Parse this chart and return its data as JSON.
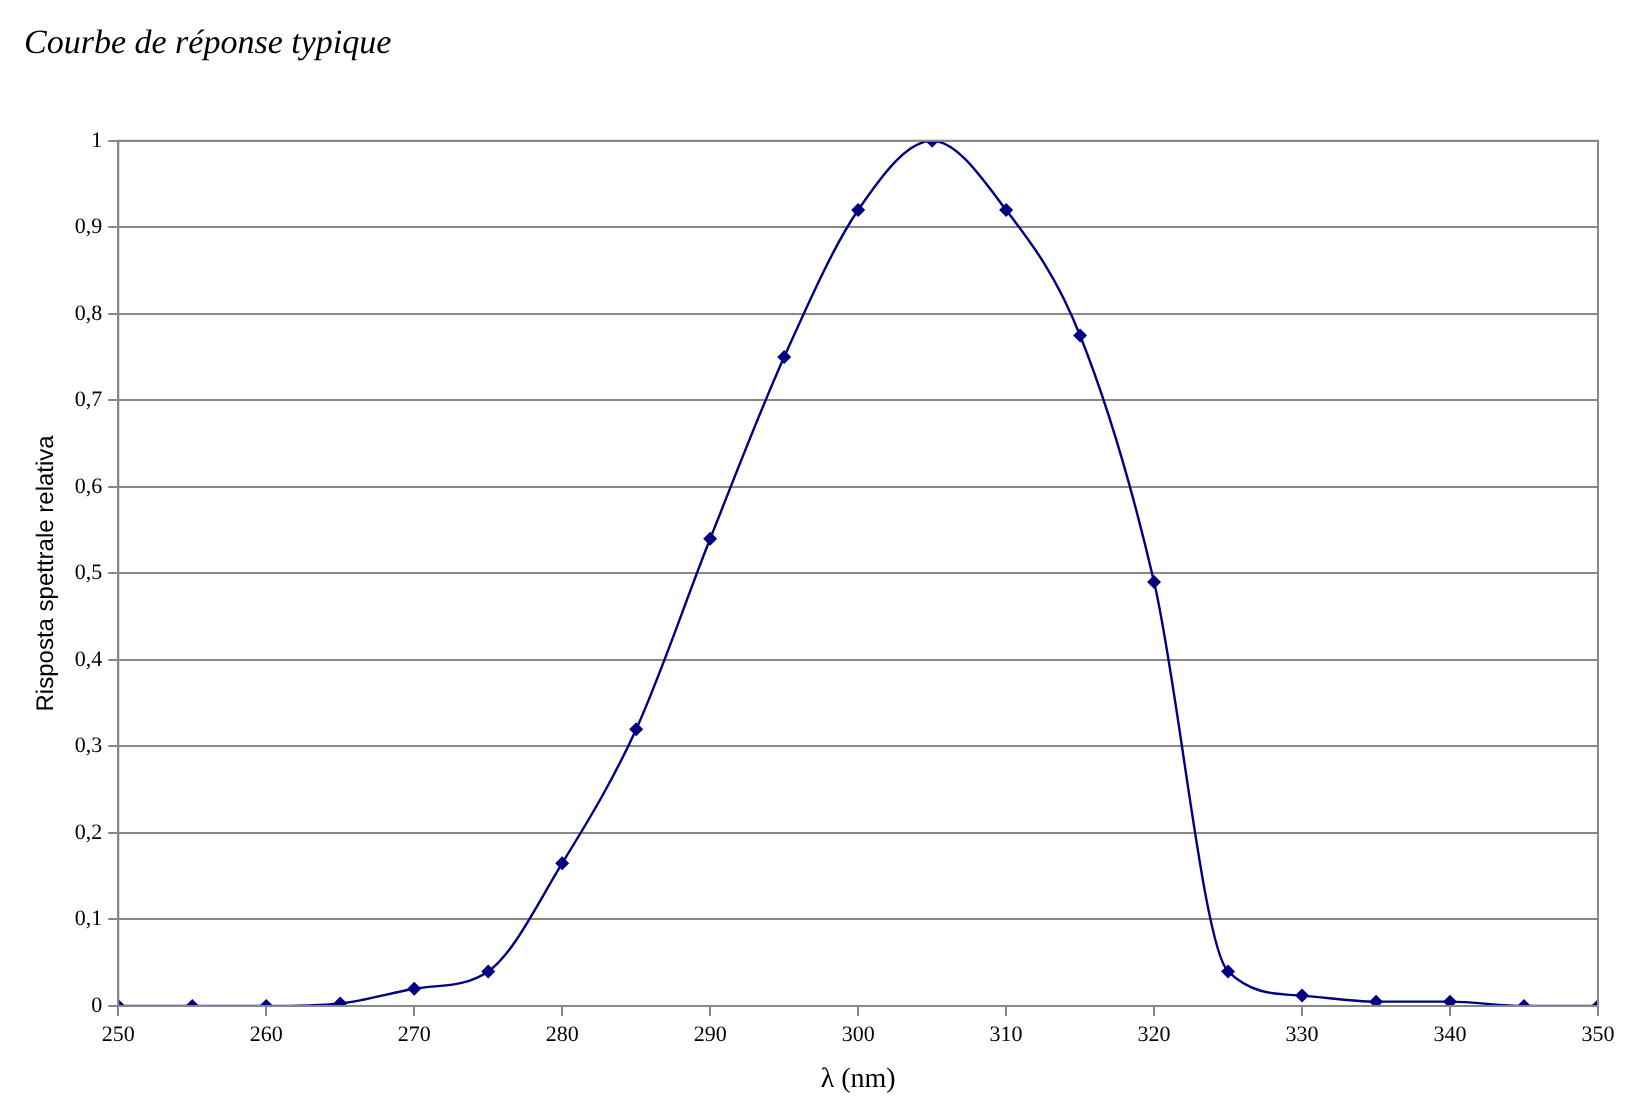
{
  "chart_data": {
    "type": "line",
    "title": "Courbe de réponse typique",
    "xlabel": "λ (nm)",
    "ylabel": "Risposta spettrale relativa",
    "x": [
      250,
      255,
      260,
      265,
      270,
      275,
      280,
      285,
      290,
      295,
      300,
      305,
      310,
      315,
      320,
      325,
      330,
      335,
      340,
      345,
      350
    ],
    "series": [
      {
        "color": "#000080",
        "values": [
          0,
          0,
          0,
          0.003,
          0.02,
          0.04,
          0.165,
          0.32,
          0.54,
          0.75,
          0.92,
          1,
          0.92,
          0.775,
          0.49,
          0.04,
          0.012,
          0.005,
          0.005,
          0,
          0
        ]
      }
    ],
    "xlim": [
      250,
      350
    ],
    "xticks": [
      250,
      260,
      270,
      280,
      290,
      300,
      310,
      320,
      330,
      340,
      350
    ],
    "ylim": [
      0,
      1
    ],
    "yticks": [
      0,
      {
        "value": 0.1,
        "label": "0,1"
      },
      {
        "value": 0.2,
        "label": "0,2"
      },
      {
        "value": 0.3,
        "label": "0,3"
      },
      {
        "value": 0.4,
        "label": "0,4"
      },
      {
        "value": 0.5,
        "label": "0,5"
      },
      {
        "value": 0.6,
        "label": "0,6"
      },
      {
        "value": 0.7,
        "label": "0,7"
      },
      {
        "value": 0.8,
        "label": "0,8"
      },
      {
        "value": 0.9,
        "label": "0,9"
      },
      1
    ],
    "grid": "y",
    "marker": "diamond",
    "line_style": "solid"
  }
}
